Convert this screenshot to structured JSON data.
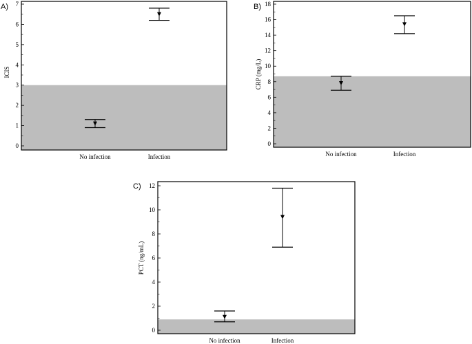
{
  "figure": {
    "panel_letters": [
      "A)",
      "B)",
      "C)"
    ]
  },
  "chart_data": [
    {
      "type": "scatter",
      "panel": "A)",
      "categories": [
        "No infection",
        "Infection"
      ],
      "ylabel": "ICIS",
      "ylim": [
        0,
        7
      ],
      "yticks": [
        0,
        1,
        2,
        3,
        4,
        5,
        6,
        7
      ],
      "reference_band": [
        0,
        3
      ],
      "series": [
        {
          "values": [
            1.1,
            6.5
          ],
          "error_low": [
            0.9,
            6.2
          ],
          "error_high": [
            1.3,
            6.8
          ]
        }
      ]
    },
    {
      "type": "scatter",
      "panel": "B)",
      "categories": [
        "No infection",
        "Infection"
      ],
      "ylabel": "CRP (mg/L)",
      "ylim": [
        0,
        18
      ],
      "yticks": [
        0,
        2,
        4,
        6,
        8,
        10,
        12,
        14,
        16,
        18
      ],
      "reference_band": [
        0,
        8.7
      ],
      "series": [
        {
          "values": [
            7.8,
            15.4
          ],
          "error_low": [
            6.9,
            14.2
          ],
          "error_high": [
            8.7,
            16.5
          ]
        }
      ]
    },
    {
      "type": "scatter",
      "panel": "C)",
      "categories": [
        "No infection",
        "Infection"
      ],
      "ylabel": "PCT (ng/mL)",
      "ylim": [
        0,
        12
      ],
      "yticks": [
        0,
        2,
        4,
        6,
        8,
        10,
        12
      ],
      "reference_band": [
        0,
        0.9
      ],
      "series": [
        {
          "values": [
            1.1,
            9.4
          ],
          "error_low": [
            0.7,
            6.9
          ],
          "error_high": [
            1.6,
            11.8
          ]
        }
      ]
    }
  ],
  "colors": {
    "band": "#bdbdbd",
    "axis": "#000000",
    "marker": "#000000"
  }
}
